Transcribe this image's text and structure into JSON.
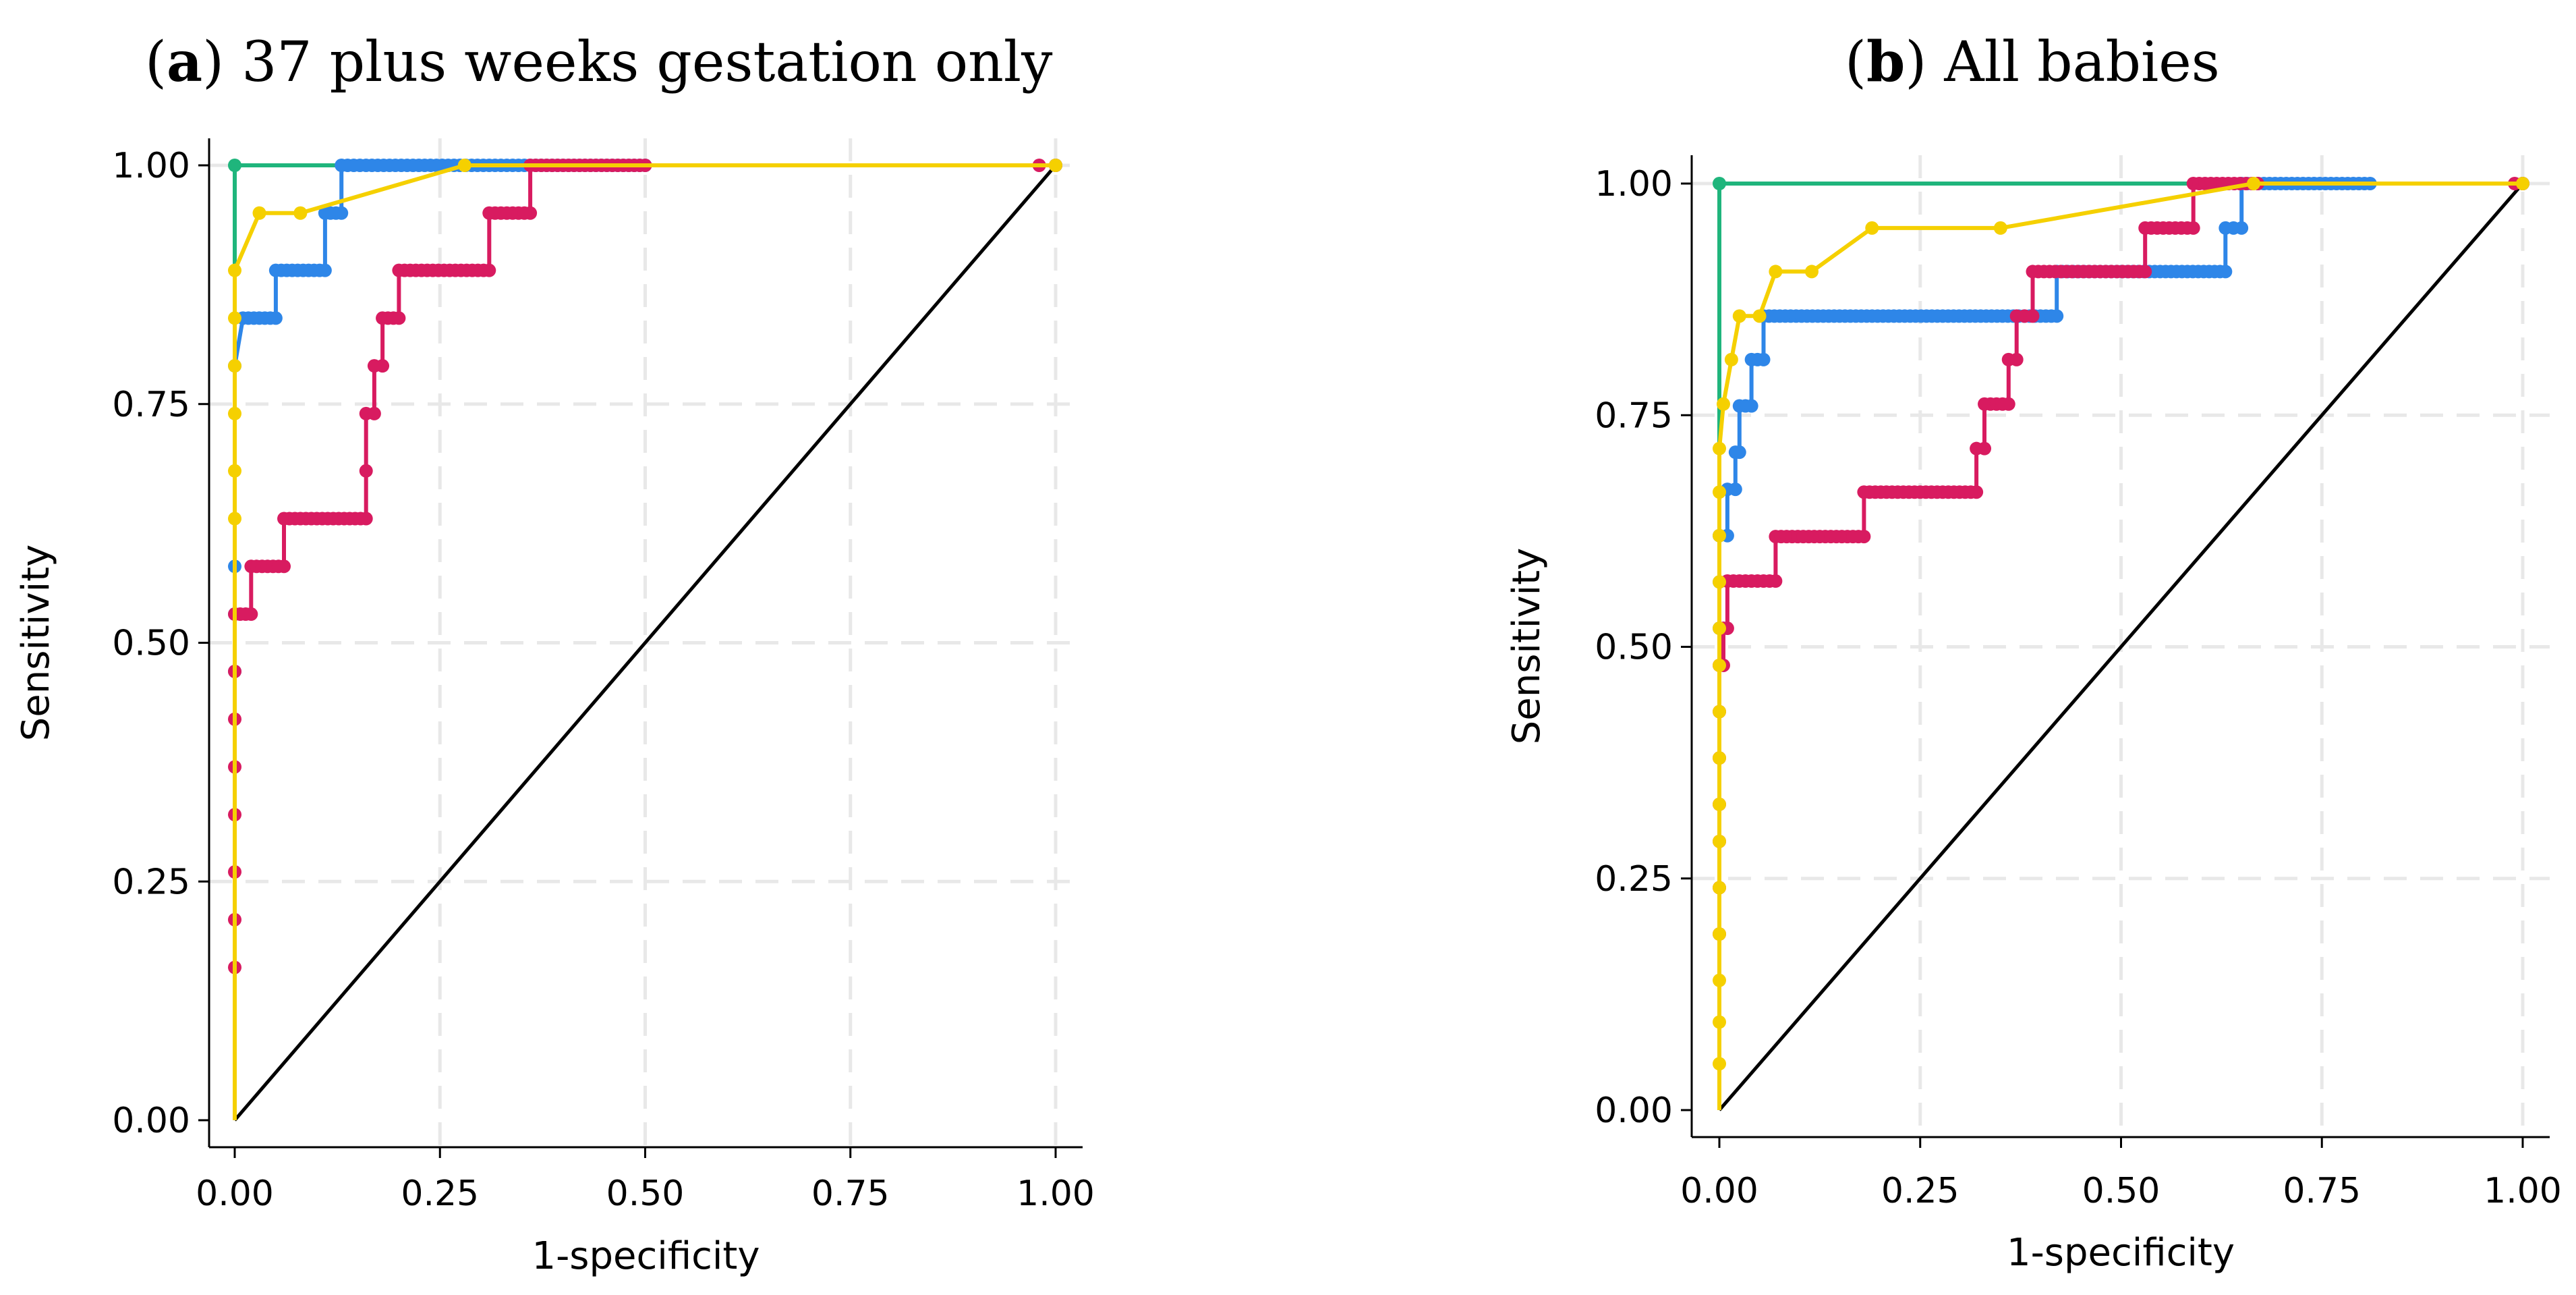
{
  "colors": {
    "green": "#1fb57c",
    "blue": "#2e86e8",
    "red": "#d81b60",
    "yellow": "#f5d000",
    "diagonal": "#000000"
  },
  "chart_data": [
    {
      "type": "line",
      "title_bold": "a",
      "title_rest": " 37 plus weeks gestation only",
      "xlabel": "1-specificity",
      "ylabel": "Sensitivity",
      "xticks": [
        "0.00",
        "0.25",
        "0.50",
        "0.75",
        "1.00"
      ],
      "yticks": [
        "0.00",
        "0.25",
        "0.50",
        "0.75",
        "1.00"
      ],
      "xlim": [
        0,
        1
      ],
      "ylim": [
        0,
        1
      ],
      "grid": true,
      "series": [
        {
          "name": "green",
          "color_key": "green",
          "steps": true,
          "dense": false,
          "points": [
            [
              0,
              0
            ],
            [
              0,
              1.0
            ],
            [
              1.0,
              1.0
            ]
          ]
        },
        {
          "name": "blue",
          "color_key": "blue",
          "steps": true,
          "dense": true,
          "points": [
            [
              0,
              0
            ],
            [
              0,
              0.47
            ],
            [
              0,
              0.53
            ],
            [
              0,
              0.58
            ],
            [
              0,
              0.79
            ],
            [
              0.01,
              0.84
            ],
            [
              0.05,
              0.84
            ],
            [
              0.05,
              0.89
            ],
            [
              0.11,
              0.89
            ],
            [
              0.11,
              0.95
            ],
            [
              0.13,
              0.95
            ],
            [
              0.13,
              1.0
            ],
            [
              0.16,
              1.0
            ],
            [
              0.21,
              1.0
            ],
            [
              0.26,
              1.0
            ],
            [
              0.31,
              1.0
            ],
            [
              0.36,
              1.0
            ],
            [
              0.5,
              1.0
            ],
            [
              1.0,
              1.0
            ]
          ]
        },
        {
          "name": "red",
          "color_key": "red",
          "steps": true,
          "dense": true,
          "points": [
            [
              0,
              0
            ],
            [
              0,
              0.16
            ],
            [
              0,
              0.21
            ],
            [
              0,
              0.26
            ],
            [
              0,
              0.32
            ],
            [
              0,
              0.37
            ],
            [
              0,
              0.42
            ],
            [
              0,
              0.47
            ],
            [
              0,
              0.53
            ],
            [
              0.02,
              0.53
            ],
            [
              0.02,
              0.58
            ],
            [
              0.06,
              0.58
            ],
            [
              0.06,
              0.63
            ],
            [
              0.16,
              0.63
            ],
            [
              0.16,
              0.68
            ],
            [
              0.16,
              0.74
            ],
            [
              0.17,
              0.74
            ],
            [
              0.17,
              0.79
            ],
            [
              0.18,
              0.79
            ],
            [
              0.18,
              0.84
            ],
            [
              0.2,
              0.84
            ],
            [
              0.2,
              0.89
            ],
            [
              0.31,
              0.89
            ],
            [
              0.31,
              0.95
            ],
            [
              0.36,
              0.95
            ],
            [
              0.36,
              1.0
            ],
            [
              0.5,
              1.0
            ],
            [
              0.98,
              1.0
            ],
            [
              1.0,
              1.0
            ]
          ]
        },
        {
          "name": "yellow",
          "color_key": "yellow",
          "steps": false,
          "dense": false,
          "points": [
            [
              0,
              0
            ],
            [
              0,
              0.63
            ],
            [
              0,
              0.68
            ],
            [
              0,
              0.74
            ],
            [
              0,
              0.79
            ],
            [
              0,
              0.84
            ],
            [
              0,
              0.89
            ],
            [
              0.03,
              0.95
            ],
            [
              0.08,
              0.95
            ],
            [
              0.28,
              1.0
            ],
            [
              1.0,
              1.0
            ]
          ]
        }
      ]
    },
    {
      "type": "line",
      "title_bold": "b",
      "title_rest": " All babies",
      "xlabel": "1-specificity",
      "ylabel": "Sensitivity",
      "xticks": [
        "0.00",
        "0.25",
        "0.50",
        "0.75",
        "1.00"
      ],
      "yticks": [
        "0.00",
        "0.25",
        "0.50",
        "0.75",
        "1.00"
      ],
      "xlim": [
        0,
        1
      ],
      "ylim": [
        0,
        1
      ],
      "grid": true,
      "series": [
        {
          "name": "green",
          "color_key": "green",
          "steps": true,
          "dense": false,
          "points": [
            [
              0,
              0
            ],
            [
              0,
              1.0
            ],
            [
              1.0,
              1.0
            ]
          ]
        },
        {
          "name": "blue",
          "color_key": "blue",
          "steps": true,
          "dense": true,
          "points": [
            [
              0,
              0
            ],
            [
              0,
              0.52
            ],
            [
              0,
              0.57
            ],
            [
              0,
              0.62
            ],
            [
              0.01,
              0.62
            ],
            [
              0.01,
              0.67
            ],
            [
              0.02,
              0.67
            ],
            [
              0.02,
              0.71
            ],
            [
              0.025,
              0.71
            ],
            [
              0.025,
              0.76
            ],
            [
              0.04,
              0.76
            ],
            [
              0.04,
              0.81
            ],
            [
              0.055,
              0.81
            ],
            [
              0.055,
              0.857
            ],
            [
              0.42,
              0.857
            ],
            [
              0.42,
              0.905
            ],
            [
              0.63,
              0.905
            ],
            [
              0.63,
              0.952
            ],
            [
              0.65,
              0.952
            ],
            [
              0.65,
              1.0
            ],
            [
              0.81,
              1.0
            ],
            [
              1.0,
              1.0
            ]
          ]
        },
        {
          "name": "red",
          "color_key": "red",
          "steps": true,
          "dense": true,
          "points": [
            [
              0,
              0
            ],
            [
              0,
              0.19
            ],
            [
              0,
              0.24
            ],
            [
              0,
              0.29
            ],
            [
              0,
              0.33
            ],
            [
              0,
              0.38
            ],
            [
              0,
              0.43
            ],
            [
              0,
              0.48
            ],
            [
              0.005,
              0.48
            ],
            [
              0.005,
              0.52
            ],
            [
              0.01,
              0.52
            ],
            [
              0.01,
              0.571
            ],
            [
              0.07,
              0.571
            ],
            [
              0.07,
              0.619
            ],
            [
              0.18,
              0.619
            ],
            [
              0.18,
              0.667
            ],
            [
              0.32,
              0.667
            ],
            [
              0.32,
              0.714
            ],
            [
              0.33,
              0.714
            ],
            [
              0.33,
              0.762
            ],
            [
              0.36,
              0.762
            ],
            [
              0.36,
              0.81
            ],
            [
              0.37,
              0.81
            ],
            [
              0.37,
              0.857
            ],
            [
              0.39,
              0.857
            ],
            [
              0.39,
              0.905
            ],
            [
              0.53,
              0.905
            ],
            [
              0.53,
              0.952
            ],
            [
              0.59,
              0.952
            ],
            [
              0.59,
              1.0
            ],
            [
              0.67,
              1.0
            ],
            [
              0.99,
              1.0
            ],
            [
              1.0,
              1.0
            ]
          ]
        },
        {
          "name": "yellow",
          "color_key": "yellow",
          "steps": false,
          "dense": false,
          "points": [
            [
              0,
              0
            ],
            [
              0,
              0.05
            ],
            [
              0,
              0.095
            ],
            [
              0,
              0.14
            ],
            [
              0,
              0.19
            ],
            [
              0,
              0.24
            ],
            [
              0,
              0.29
            ],
            [
              0,
              0.33
            ],
            [
              0,
              0.38
            ],
            [
              0,
              0.43
            ],
            [
              0,
              0.48
            ],
            [
              0,
              0.52
            ],
            [
              0,
              0.57
            ],
            [
              0,
              0.62
            ],
            [
              0,
              0.667
            ],
            [
              0,
              0.714
            ],
            [
              0.005,
              0.762
            ],
            [
              0.015,
              0.81
            ],
            [
              0.025,
              0.857
            ],
            [
              0.05,
              0.857
            ],
            [
              0.07,
              0.905
            ],
            [
              0.115,
              0.905
            ],
            [
              0.19,
              0.952
            ],
            [
              0.35,
              0.952
            ],
            [
              0.665,
              1.0
            ],
            [
              1.0,
              1.0
            ]
          ]
        }
      ]
    }
  ]
}
